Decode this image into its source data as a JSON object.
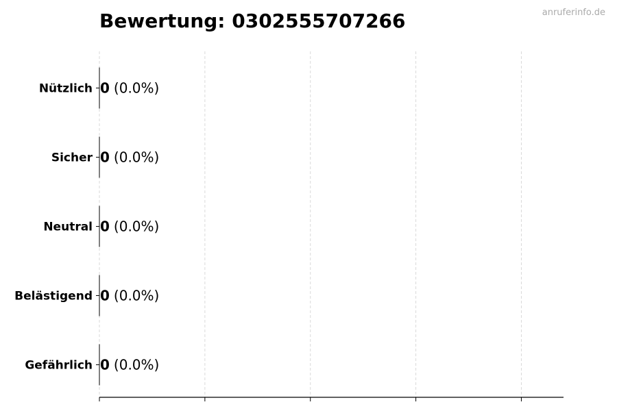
{
  "chart_data": {
    "type": "bar",
    "orientation": "horizontal",
    "title": "Bewertung: 0302555707266",
    "watermark": "anruferinfo.de",
    "categories": [
      "Nützlich",
      "Sicher",
      "Neutral",
      "Belästigend",
      "Gefährlich"
    ],
    "values": [
      0,
      0,
      0,
      0,
      0
    ],
    "labels": [
      {
        "count": "0",
        "percent": "(0.0%)"
      },
      {
        "count": "0",
        "percent": "(0.0%)"
      },
      {
        "count": "0",
        "percent": "(0.0%)"
      },
      {
        "count": "0",
        "percent": "(0.0%)"
      },
      {
        "count": "0",
        "percent": "(0.0%)"
      }
    ],
    "xlim": [
      0,
      4.4
    ],
    "xticks": [
      0,
      1,
      2,
      3,
      4
    ],
    "xtick_labels_shown": false,
    "xlabel": "",
    "ylabel": "",
    "grid": "vertical dashed",
    "colors": {
      "grid": "#d9d9d9",
      "axis": "#000000",
      "watermark": "#aaaaaa"
    }
  }
}
